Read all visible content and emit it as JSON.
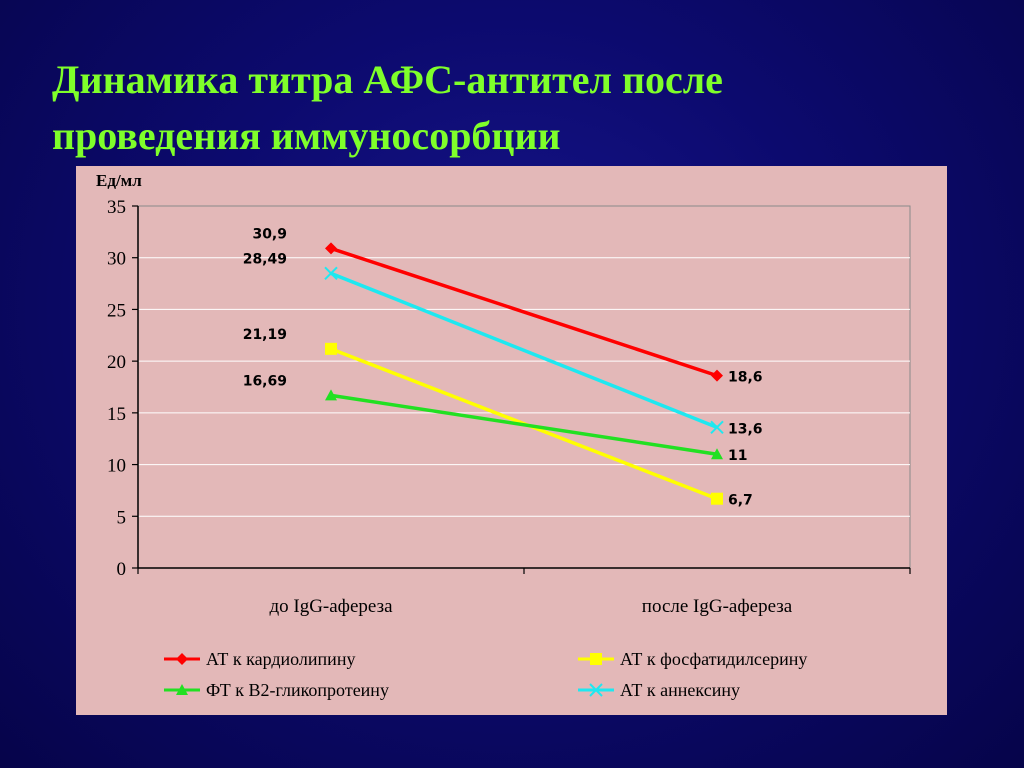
{
  "title": {
    "line1": "Динамика титра АФС-антител после",
    "line2": "проведения иммуносорбции"
  },
  "chart_data": {
    "type": "line",
    "ylabel": "Ед/мл",
    "ylim": [
      0,
      35
    ],
    "yticks": [
      "0",
      "5",
      "10",
      "15",
      "20",
      "25",
      "30",
      "35"
    ],
    "categories": [
      "до IgG-афереза",
      "после IgG-афереза"
    ],
    "grid": true,
    "legend_position": "bottom",
    "series": [
      {
        "name": "АТ к кардиолипину",
        "values": [
          30.9,
          18.6
        ],
        "labels": [
          "30,9",
          "18,6"
        ],
        "color": "#ff0000",
        "marker": "diamond"
      },
      {
        "name": "АТ к аннексину",
        "values": [
          28.49,
          13.6
        ],
        "labels": [
          "28,49",
          "13,6"
        ],
        "color": "#1ee8f0",
        "marker": "x"
      },
      {
        "name": "АТ к фосфатидилсерину",
        "values": [
          21.19,
          6.7
        ],
        "labels": [
          "21,19",
          "6,7"
        ],
        "color": "#ffff00",
        "marker": "square"
      },
      {
        "name": "ФТ к В2-гликопротеину",
        "values": [
          16.69,
          11
        ],
        "labels": [
          "16,69",
          "11"
        ],
        "color": "#22e022",
        "marker": "triangle"
      }
    ]
  },
  "legend": {
    "items": [
      {
        "label": "АТ к кардиолипину",
        "color": "#ff0000",
        "marker": "diamond"
      },
      {
        "label": "АТ к фосфатидилсерину",
        "color": "#ffff00",
        "marker": "square"
      },
      {
        "label": "ФТ к В2-гликопротеину",
        "color": "#22e022",
        "marker": "triangle"
      },
      {
        "label": "АТ к аннексину",
        "color": "#1ee8f0",
        "marker": "x"
      }
    ]
  }
}
